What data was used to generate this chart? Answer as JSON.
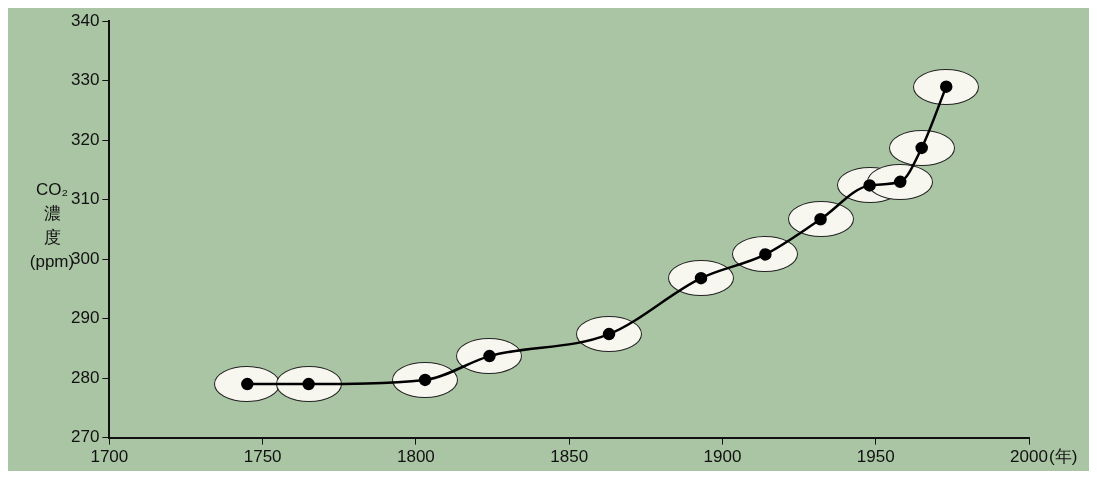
{
  "chart_data": {
    "type": "line",
    "xlabel": "(年)",
    "ylabel": "CO₂濃度(ppm)",
    "x": [
      1745,
      1765,
      1803,
      1824,
      1863,
      1893,
      1914,
      1932,
      1948,
      1958,
      1965,
      1973
    ],
    "values": [
      279,
      279,
      279.7,
      283.7,
      287.4,
      296.8,
      300.8,
      306.7,
      312.4,
      313,
      318.7,
      329
    ],
    "color": "#000000",
    "marker": "circle",
    "line_style": "solid",
    "xlim": [
      1700,
      2000
    ],
    "xticks": [
      1700,
      1750,
      1800,
      1850,
      1900,
      1950,
      2000
    ],
    "ylim": [
      270,
      340
    ],
    "yticks": [
      270,
      280,
      290,
      300,
      310,
      320,
      330,
      340
    ],
    "grid": false,
    "legend": false
  }
}
